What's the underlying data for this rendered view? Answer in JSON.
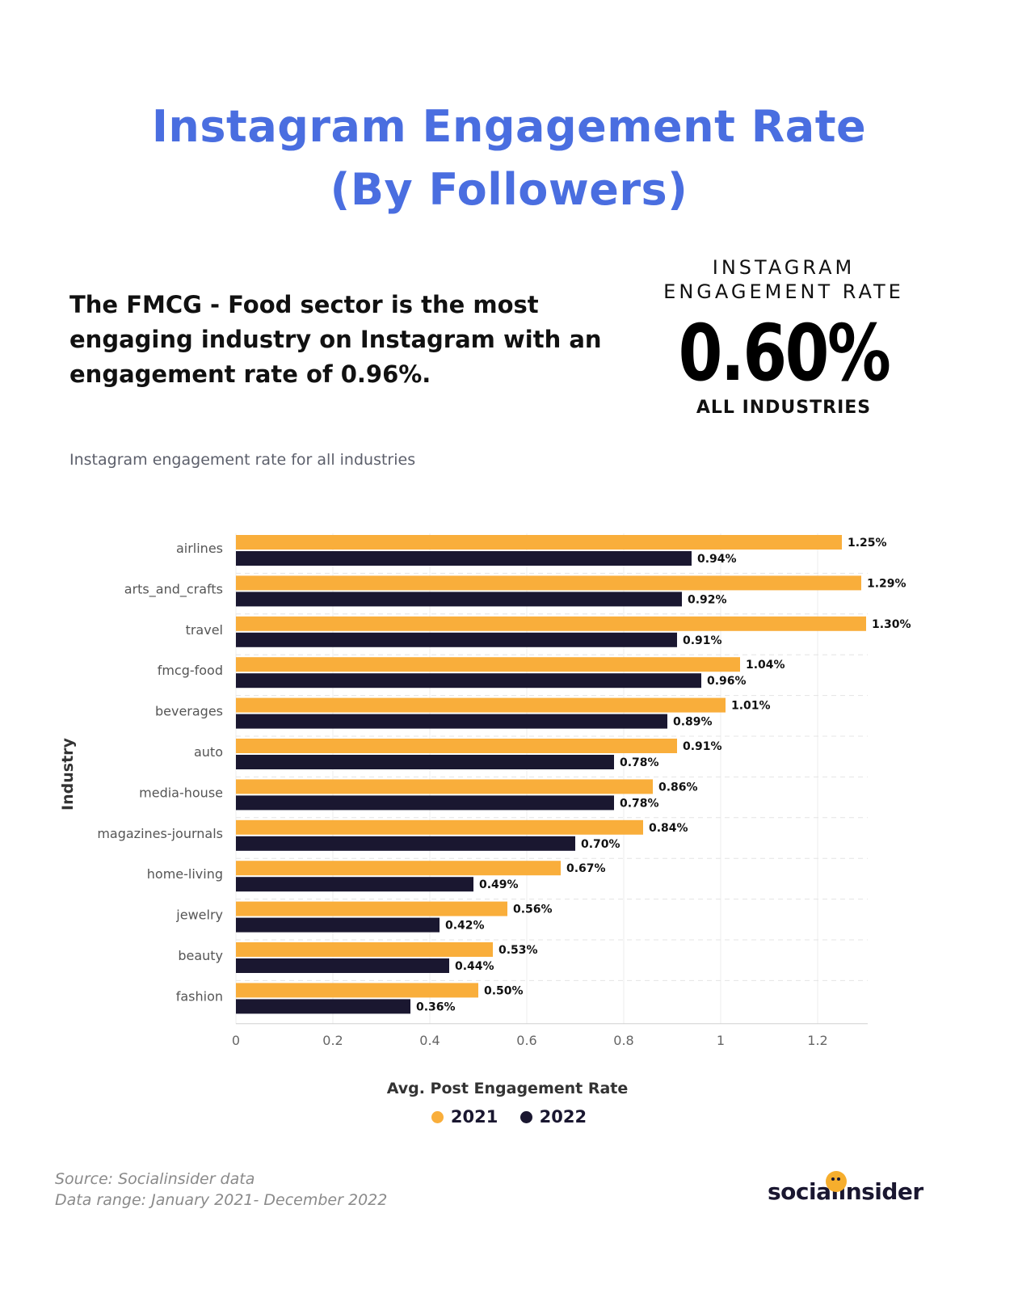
{
  "title": {
    "line1": "Instagram Engagement Rate",
    "line2": "(By Followers)"
  },
  "headline": "The FMCG - Food sector is the most engaging industry on Instagram with an engagement rate of 0.96%.",
  "stat": {
    "label_line1": "INSTAGRAM",
    "label_line2": "ENGAGEMENT RATE",
    "value": "0.60%",
    "sub": "ALL INDUSTRIES"
  },
  "chart_subtitle": "Instagram engagement rate for all industries",
  "chart_data": {
    "type": "bar",
    "orientation": "horizontal",
    "categories": [
      "airlines",
      "arts_and_crafts",
      "travel",
      "fmcg-food",
      "beverages",
      "auto",
      "media-house",
      "magazines-journals",
      "home-living",
      "jewelry",
      "beauty",
      "fashion"
    ],
    "series": [
      {
        "name": "2021",
        "color": "#f9ae3b",
        "values": [
          1.25,
          1.29,
          1.3,
          1.04,
          1.01,
          0.91,
          0.86,
          0.84,
          0.67,
          0.56,
          0.53,
          0.5
        ],
        "labels": [
          "1.25%",
          "1.29%",
          "1.30%",
          "1.04%",
          "1.01%",
          "0.91%",
          "0.86%",
          "0.84%",
          "0.67%",
          "0.56%",
          "0.53%",
          "0.50%"
        ]
      },
      {
        "name": "2022",
        "color": "#1a1730",
        "values": [
          0.94,
          0.92,
          0.91,
          0.96,
          0.89,
          0.78,
          0.78,
          0.7,
          0.49,
          0.42,
          0.44,
          0.36
        ],
        "labels": [
          "0.94%",
          "0.92%",
          "0.91%",
          "0.96%",
          "0.89%",
          "0.78%",
          "0.78%",
          "0.70%",
          "0.49%",
          "0.42%",
          "0.44%",
          "0.36%"
        ]
      }
    ],
    "xlabel": "Avg. Post Engagement Rate",
    "ylabel": "Industry",
    "xlim": [
      0,
      1.3
    ],
    "xticks": [
      0,
      0.2,
      0.4,
      0.6,
      0.8,
      1,
      1.2
    ],
    "xtick_labels": [
      "0",
      "0.2",
      "0.4",
      "0.6",
      "0.8",
      "1",
      "1.2"
    ],
    "grid": true,
    "legend": "bottom"
  },
  "source": {
    "line1": "Source: Socialinsider data",
    "line2": "Data range: January 2021- December 2022"
  },
  "logo": "socialinsider",
  "colors": {
    "title": "#4a6ee0",
    "bar_2021": "#f9ae3b",
    "bar_2022": "#1a1730"
  }
}
